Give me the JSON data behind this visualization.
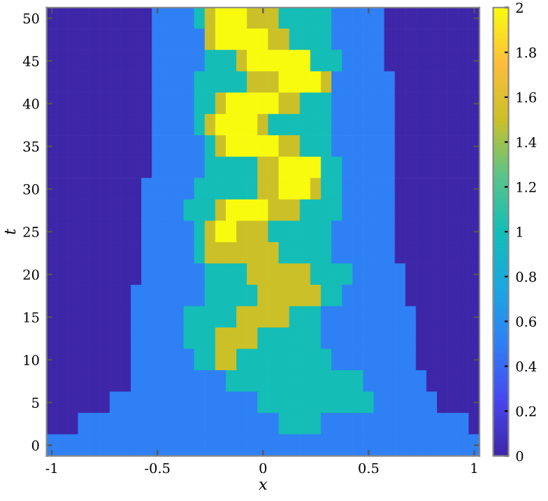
{
  "chart_data": {
    "type": "heatmap",
    "xlabel": "x",
    "ylabel": "t",
    "categories": [
      "-1",
      null,
      null,
      null,
      null,
      null,
      null,
      null,
      null,
      null,
      "-0.5",
      null,
      null,
      null,
      null,
      null,
      null,
      null,
      null,
      null,
      "0",
      null,
      null,
      null,
      null,
      null,
      null,
      null,
      null,
      null,
      "0.5",
      null,
      null,
      null,
      null,
      null,
      null,
      null,
      null,
      null,
      "1"
    ],
    "y_categories": [
      "50",
      null,
      "45",
      null,
      "40",
      null,
      "35",
      null,
      "30",
      null,
      "25",
      null,
      "20",
      null,
      "15",
      null,
      "10",
      null,
      "5",
      null,
      "0"
    ],
    "cells": [
      [
        0,
        0,
        0,
        0,
        0,
        0,
        0,
        0,
        0,
        0,
        0.5,
        0.5,
        0.5,
        0.5,
        1,
        1.5,
        2,
        2,
        2,
        1.5,
        1.5,
        1.5,
        1,
        1,
        1,
        1,
        1,
        0.5,
        0.5,
        0.5,
        0.5,
        0.5,
        0,
        0,
        0,
        0,
        0,
        0,
        0,
        0,
        0
      ],
      [
        0,
        0,
        0,
        0,
        0,
        0,
        0,
        0,
        0,
        0,
        0.5,
        0.5,
        0.5,
        0.5,
        0.5,
        1.5,
        2,
        2,
        2,
        2,
        2,
        1.5,
        1.5,
        1,
        1,
        1,
        1,
        0.5,
        0.5,
        0.5,
        0.5,
        0.5,
        0,
        0,
        0,
        0,
        0,
        0,
        0,
        0,
        0
      ],
      [
        0,
        0,
        0,
        0,
        0,
        0,
        0,
        0,
        0,
        0,
        0.5,
        0.5,
        0.5,
        0.5,
        0.5,
        1,
        1,
        1,
        1.5,
        2,
        2,
        2,
        2,
        2,
        2,
        1,
        1,
        1,
        0.5,
        0.5,
        0.5,
        0.5,
        0,
        0,
        0,
        0,
        0,
        0,
        0,
        0,
        0
      ],
      [
        0,
        0,
        0,
        0,
        0,
        0,
        0,
        0,
        0,
        0,
        0.5,
        0.5,
        0.5,
        0.5,
        1,
        1,
        1,
        1,
        1,
        1.5,
        1.5,
        1.5,
        2,
        2,
        2,
        2,
        1.5,
        0.5,
        0.5,
        0.5,
        0.5,
        0.5,
        0.5,
        0,
        0,
        0,
        0,
        0,
        0,
        0,
        0
      ],
      [
        0,
        0,
        0,
        0,
        0,
        0,
        0,
        0,
        0,
        0,
        0.5,
        0.5,
        0.5,
        0.5,
        1,
        1,
        1.5,
        2,
        2,
        2,
        2,
        2,
        1.5,
        1.5,
        1,
        1,
        1,
        0.5,
        0.5,
        0.5,
        0.5,
        0.5,
        0.5,
        0,
        0,
        0,
        0,
        0,
        0,
        0,
        0
      ],
      [
        0,
        0,
        0,
        0,
        0,
        0,
        0,
        0,
        0,
        0,
        0.5,
        0.5,
        0.5,
        0.5,
        1,
        1.5,
        2,
        2,
        2,
        2,
        1.5,
        1,
        1,
        1,
        1,
        1,
        1,
        0.5,
        0.5,
        0.5,
        0.5,
        0.5,
        0.5,
        0,
        0,
        0,
        0,
        0,
        0,
        0,
        0
      ],
      [
        0,
        0,
        0,
        0,
        0,
        0,
        0,
        0,
        0,
        0,
        0.5,
        0.5,
        0.5,
        0.5,
        0.5,
        1,
        1.5,
        2,
        2,
        2,
        2,
        2,
        1.5,
        1.5,
        1,
        1,
        1,
        0.5,
        0.5,
        0.5,
        0.5,
        0.5,
        0.5,
        0,
        0,
        0,
        0,
        0,
        0,
        0,
        0
      ],
      [
        0,
        0,
        0,
        0,
        0,
        0,
        0,
        0,
        0,
        0,
        0.5,
        0.5,
        0.5,
        0.5,
        0.5,
        1,
        1,
        1,
        1,
        1,
        1.5,
        1.5,
        2,
        2,
        2,
        2,
        1,
        1,
        0.5,
        0.5,
        0.5,
        0.5,
        0.5,
        0,
        0,
        0,
        0,
        0,
        0,
        0,
        0
      ],
      [
        0,
        0,
        0,
        0,
        0,
        0,
        0,
        0,
        0,
        0.5,
        0.5,
        0.5,
        0.5,
        0.5,
        1,
        1,
        1,
        1,
        1,
        1,
        1.5,
        1.5,
        2,
        2,
        2,
        1.5,
        1,
        1,
        0.5,
        0.5,
        0.5,
        0.5,
        0.5,
        0,
        0,
        0,
        0,
        0,
        0,
        0,
        0
      ],
      [
        0,
        0,
        0,
        0,
        0,
        0,
        0,
        0,
        0,
        0.5,
        0.5,
        0.5,
        0.5,
        1,
        1,
        1,
        1.5,
        2,
        2,
        2,
        2,
        1.5,
        1.5,
        1.5,
        1,
        1,
        1,
        1,
        0.5,
        0.5,
        0.5,
        0.5,
        0.5,
        0,
        0,
        0,
        0,
        0,
        0,
        0,
        0
      ],
      [
        0,
        0,
        0,
        0,
        0,
        0,
        0,
        0,
        0,
        0.5,
        0.5,
        0.5,
        0.5,
        0.5,
        1,
        1.5,
        2,
        2,
        1.5,
        1.5,
        1.5,
        1,
        1,
        1,
        1,
        1,
        1,
        0.5,
        0.5,
        0.5,
        0.5,
        0.5,
        0.5,
        0,
        0,
        0,
        0,
        0,
        0,
        0,
        0
      ],
      [
        0,
        0,
        0,
        0,
        0,
        0,
        0,
        0,
        0,
        0.5,
        0.5,
        0.5,
        0.5,
        0.5,
        1,
        1.5,
        1.5,
        1.5,
        1.5,
        1.5,
        1.5,
        1.5,
        1,
        1,
        1,
        1,
        1,
        0.5,
        0.5,
        0.5,
        0.5,
        0.5,
        0.5,
        0,
        0,
        0,
        0,
        0,
        0,
        0,
        0
      ],
      [
        0,
        0,
        0,
        0,
        0,
        0,
        0,
        0,
        0,
        0.5,
        0.5,
        0.5,
        0.5,
        0.5,
        0.5,
        1,
        1,
        1,
        1,
        1.5,
        1.5,
        1.5,
        1.5,
        1.5,
        1.5,
        1,
        1,
        1,
        1,
        0.5,
        0.5,
        0.5,
        0.5,
        0.5,
        0,
        0,
        0,
        0,
        0,
        0,
        0
      ],
      [
        0,
        0,
        0,
        0,
        0,
        0,
        0,
        0,
        0.5,
        0.5,
        0.5,
        0.5,
        0.5,
        0.5,
        0.5,
        1,
        1,
        1,
        1,
        1,
        1.5,
        1.5,
        1.5,
        1.5,
        1.5,
        1.5,
        1,
        1,
        0.5,
        0.5,
        0.5,
        0.5,
        0.5,
        0.5,
        0,
        0,
        0,
        0,
        0,
        0,
        0
      ],
      [
        0,
        0,
        0,
        0,
        0,
        0,
        0,
        0,
        0.5,
        0.5,
        0.5,
        0.5,
        0.5,
        1,
        1,
        1,
        1,
        1,
        1.5,
        1.5,
        1.5,
        1.5,
        1.5,
        1,
        1,
        1,
        0.5,
        0.5,
        0.5,
        0.5,
        0.5,
        0.5,
        0.5,
        0.5,
        0.5,
        0,
        0,
        0,
        0,
        0,
        0
      ],
      [
        0,
        0,
        0,
        0,
        0,
        0,
        0,
        0,
        0.5,
        0.5,
        0.5,
        0.5,
        0.5,
        1,
        1,
        1,
        1.5,
        1.5,
        1.5,
        1.5,
        1,
        1,
        1,
        1,
        1,
        1,
        0.5,
        0.5,
        0.5,
        0.5,
        0.5,
        0.5,
        0.5,
        0.5,
        0.5,
        0,
        0,
        0,
        0,
        0,
        0
      ],
      [
        0,
        0,
        0,
        0,
        0,
        0,
        0,
        0,
        0.5,
        0.5,
        0.5,
        0.5,
        0.5,
        0.5,
        1,
        1,
        1.5,
        1.5,
        1,
        1,
        1,
        1,
        1,
        1,
        1,
        1,
        1,
        0.5,
        0.5,
        0.5,
        0.5,
        0.5,
        0.5,
        0.5,
        0.5,
        0,
        0,
        0,
        0,
        0,
        0
      ],
      [
        0,
        0,
        0,
        0,
        0,
        0,
        0,
        0,
        0.5,
        0.5,
        0.5,
        0.5,
        0.5,
        0.5,
        0.5,
        0.5,
        0.5,
        1,
        1,
        1,
        1,
        1,
        1,
        1,
        1,
        1,
        1,
        1,
        1,
        1,
        0.5,
        0.5,
        0.5,
        0.5,
        0.5,
        0.5,
        0,
        0,
        0,
        0,
        0
      ],
      [
        0,
        0,
        0,
        0,
        0,
        0,
        0.5,
        0.5,
        0.5,
        0.5,
        0.5,
        0.5,
        0.5,
        0.5,
        0.5,
        0.5,
        0.5,
        0.5,
        0.5,
        0.5,
        1,
        1,
        1,
        1,
        1,
        1,
        1,
        1,
        1,
        1,
        1,
        0.5,
        0.5,
        0.5,
        0.5,
        0.5,
        0.5,
        0,
        0,
        0,
        0
      ],
      [
        0,
        0,
        0,
        0.5,
        0.5,
        0.5,
        0.5,
        0.5,
        0.5,
        0.5,
        0.5,
        0.5,
        0.5,
        0.5,
        0.5,
        0.5,
        0.5,
        0.5,
        0.5,
        0.5,
        0.5,
        0.5,
        1,
        1,
        1,
        1,
        0.5,
        0.5,
        0.5,
        0.5,
        0.5,
        0.5,
        0.5,
        0.5,
        0.5,
        0.5,
        0.5,
        0.5,
        0.5,
        0.5,
        0
      ],
      [
        0.5,
        0.5,
        0.5,
        0.5,
        0.5,
        0.5,
        0.5,
        0.5,
        0.5,
        0.5,
        0.5,
        0.5,
        0.5,
        0.5,
        0.5,
        0.5,
        0.5,
        0.5,
        0.5,
        0.5,
        0.5,
        0.5,
        0.5,
        0.5,
        0.5,
        0.5,
        0.5,
        0.5,
        0.5,
        0.5,
        0.5,
        0.5,
        0.5,
        0.5,
        0.5,
        0.5,
        0.5,
        0.5,
        0.5,
        0.5,
        0.5
      ]
    ],
    "clim": [
      0,
      2
    ],
    "cticks": [
      0,
      0.2,
      0.4,
      0.6,
      0.8,
      1,
      1.2,
      1.4,
      1.6,
      1.8,
      2
    ]
  }
}
